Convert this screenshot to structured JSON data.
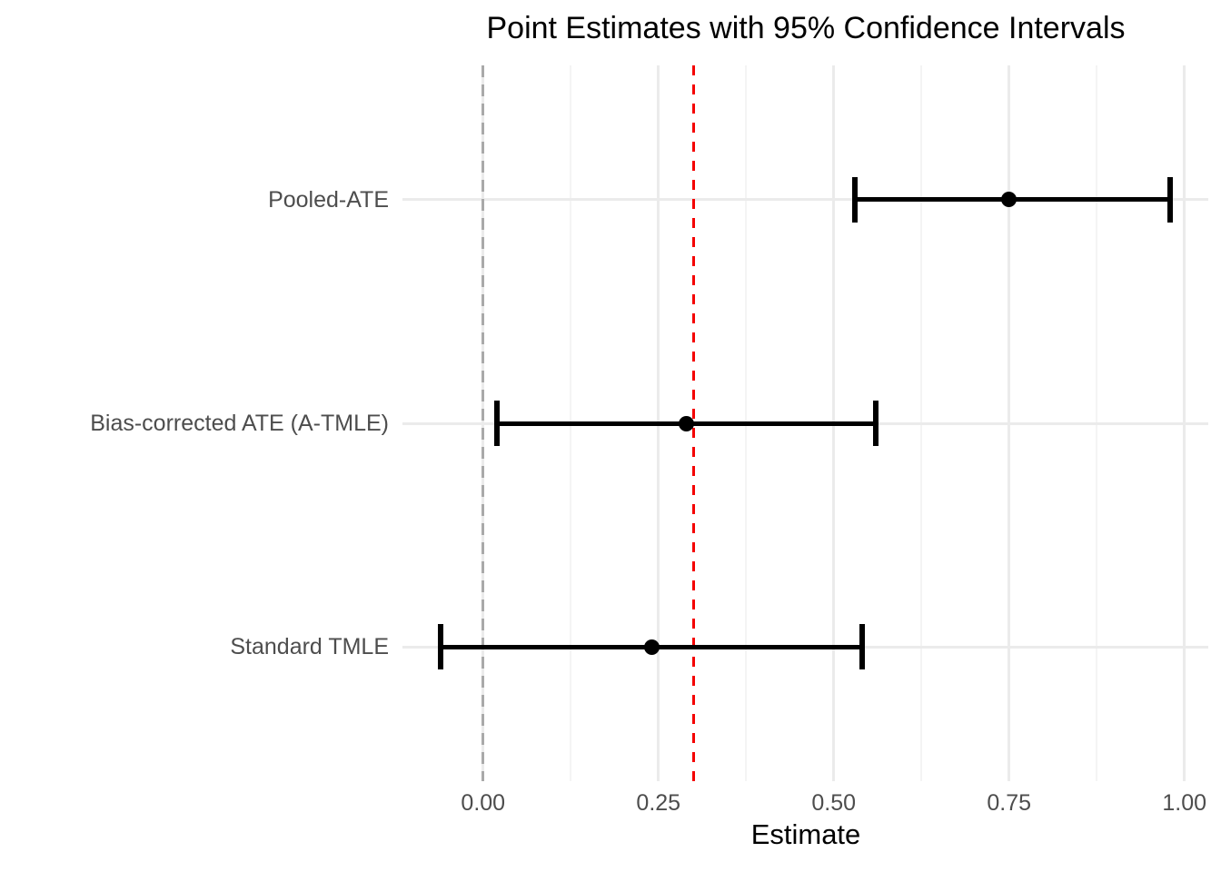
{
  "chart_data": {
    "type": "errorbar",
    "title": "Point Estimates with 95% Confidence Intervals",
    "xlabel": "Estimate",
    "ylabel": "",
    "xlim": [
      -0.115,
      1.034
    ],
    "x_ticks": [
      0.0,
      0.25,
      0.5,
      0.75,
      1.0
    ],
    "x_tick_labels": [
      "0.00",
      "0.25",
      "0.50",
      "0.75",
      "1.00"
    ],
    "x_minor_ticks": [
      0.125,
      0.375,
      0.625,
      0.875
    ],
    "grid": "on",
    "legend": "none",
    "categories": [
      "Pooled-ATE",
      "Bias-corrected ATE (A-TMLE)",
      "Standard TMLE"
    ],
    "points": [
      {
        "label": "Pooled-ATE",
        "estimate": 0.75,
        "ci_lower": 0.53,
        "ci_upper": 0.98
      },
      {
        "label": "Bias-corrected ATE (A-TMLE)",
        "estimate": 0.29,
        "ci_lower": 0.02,
        "ci_upper": 0.56
      },
      {
        "label": "Standard TMLE",
        "estimate": 0.24,
        "ci_lower": -0.06,
        "ci_upper": 0.54
      }
    ],
    "reference_lines": [
      {
        "x": 0.0,
        "style": "dashed",
        "color": "#a9a9a9",
        "name": "zero-line"
      },
      {
        "x": 0.3,
        "style": "dashed",
        "color": "#f40000",
        "name": "true-value-line"
      }
    ],
    "colors": {
      "estimate": "#000000",
      "grid_major": "#ebebeb",
      "grid_minor": "#f4f4f4",
      "axis_text": "#4d4d4d",
      "title_text": "#000000"
    }
  }
}
